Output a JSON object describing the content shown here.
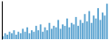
{
  "chart_data": {
    "type": "bar",
    "values": [
      2,
      4,
      3,
      5,
      4,
      6,
      3,
      5,
      4,
      7,
      5,
      8,
      4,
      6,
      5,
      9,
      6,
      10,
      5,
      8,
      6,
      11,
      7,
      9,
      8,
      13,
      7,
      10,
      9,
      14,
      8,
      11,
      10,
      15,
      9,
      13,
      11,
      17,
      12,
      19,
      11,
      16,
      14,
      21,
      13,
      18,
      16,
      24
    ],
    "color": "#5ba3d0",
    "ylim": [
      0,
      25.92
    ],
    "tick_labels": false,
    "grid": false
  }
}
